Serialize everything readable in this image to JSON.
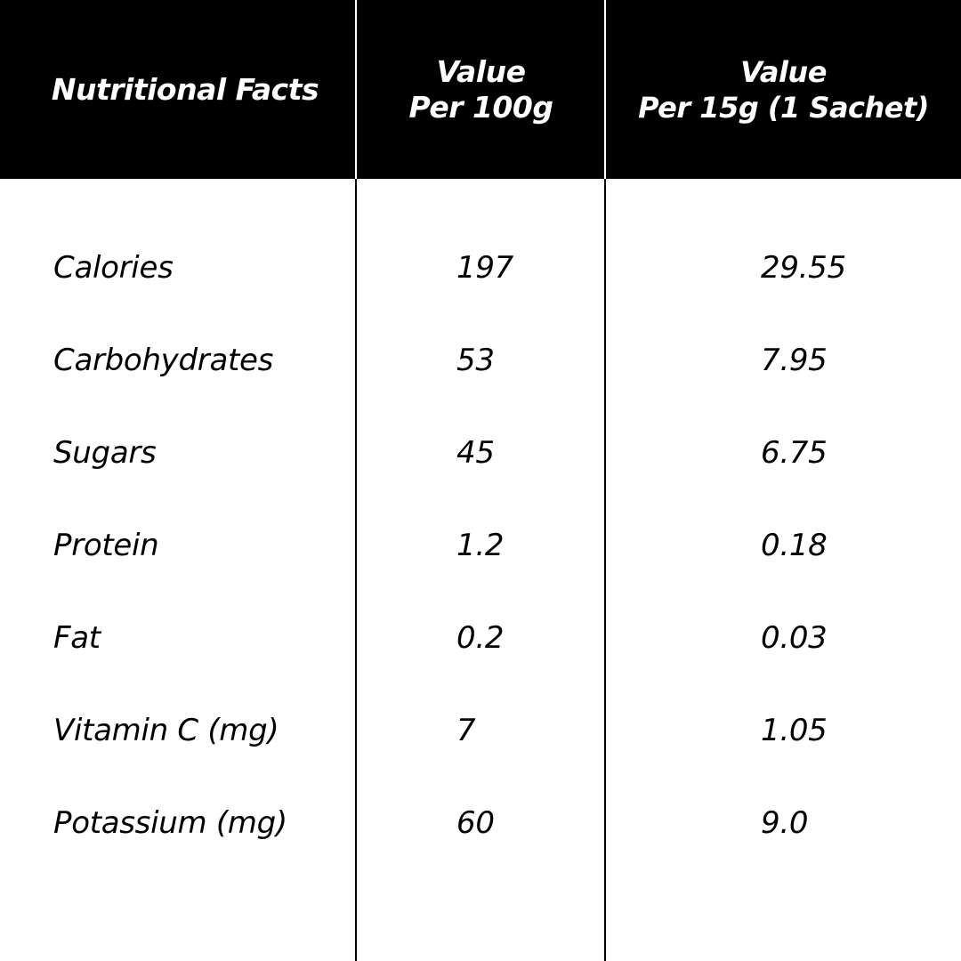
{
  "header": {
    "col1": "Nutritional Facts",
    "col2_line1": "Value",
    "col2_line2": "Per 100g",
    "col3_line1": "Value",
    "col3_line2": "Per 15g (1 Sachet)"
  },
  "rows": [
    {
      "name": "Calories",
      "per100g": "197",
      "perSachet": "29.55"
    },
    {
      "name": "Carbohydrates",
      "per100g": "53",
      "perSachet": "7.95"
    },
    {
      "name": "Sugars",
      "per100g": "45",
      "perSachet": "6.75"
    },
    {
      "name": "Protein",
      "per100g": "1.2",
      "perSachet": "0.18"
    },
    {
      "name": "Fat",
      "per100g": "0.2",
      "perSachet": "0.03"
    },
    {
      "name": "Vitamin C (mg)",
      "per100g": "7",
      "perSachet": "1.05"
    },
    {
      "name": "Potassium (mg)",
      "per100g": "60",
      "perSachet": "9.0"
    }
  ],
  "colors": {
    "header_bg": "#000000",
    "header_text": "#ffffff",
    "body_bg": "#ffffff",
    "body_text": "#000000"
  }
}
